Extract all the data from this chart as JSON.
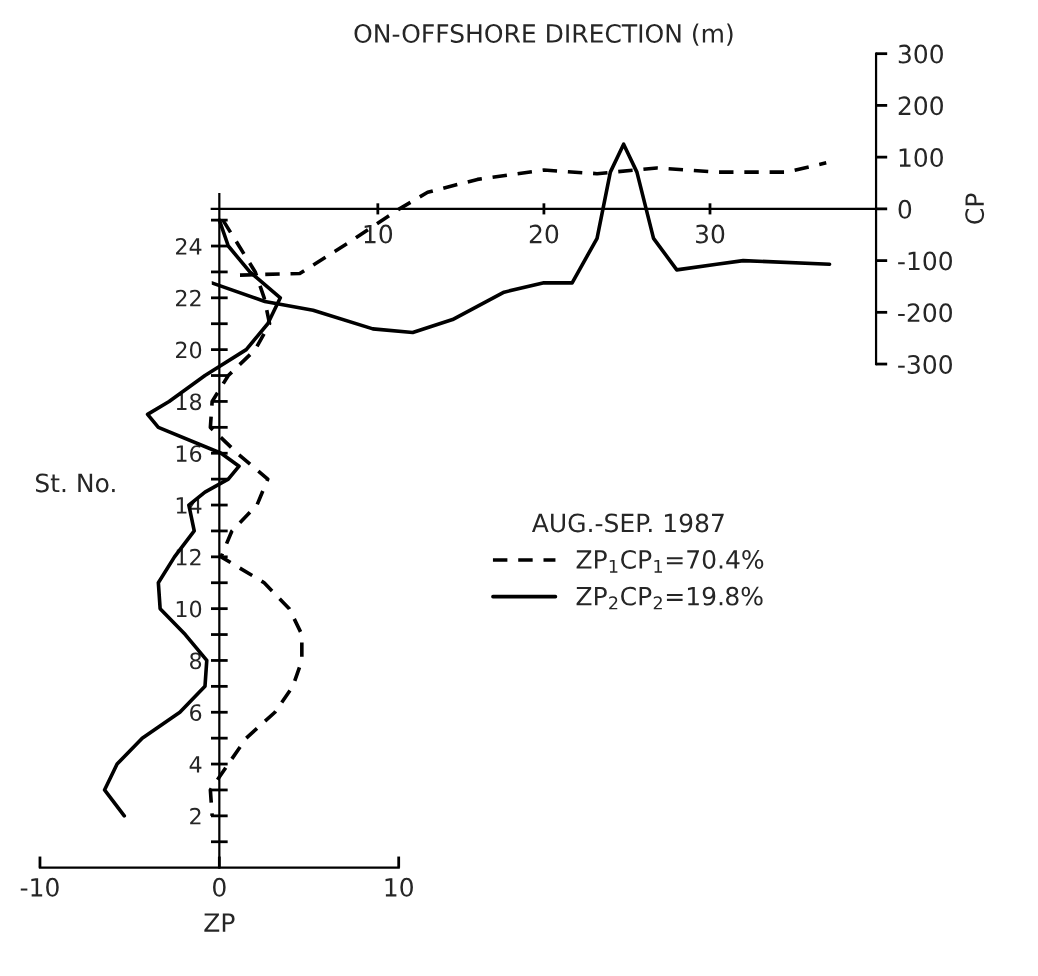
{
  "chart_data": [
    {
      "type": "line",
      "xlabel": "ON-OFFSHORE DIRECTION (m)",
      "ylabel": "CP",
      "xlim": [
        0,
        40
      ],
      "xticks": [
        10,
        20,
        30
      ],
      "ylim": [
        -300,
        300
      ],
      "yticks": [
        -300,
        -200,
        -100,
        0,
        100,
        200,
        300
      ],
      "grid": false,
      "legend": false,
      "series": [
        {
          "color": "#000000",
          "line_style": "dashed",
          "x": [
            1.7,
            5.3,
            8.3,
            11.3,
            13,
            16,
            20,
            23.2,
            26.8,
            30.4,
            34.6,
            37
          ],
          "values": [
            -128,
            -125,
            -64,
            0,
            32,
            57,
            75,
            68,
            79,
            71,
            71,
            89
          ]
        },
        {
          "color": "#000000",
          "line_style": "solid",
          "x": [
            0,
            3.2,
            6.1,
            9.7,
            12.1,
            14.5,
            17.6,
            20,
            21.7,
            23.2,
            24,
            24.8,
            25.6,
            26.6,
            28,
            30.4,
            32,
            37.2
          ],
          "values": [
            -143,
            -179,
            -196,
            -232,
            -239,
            -214,
            -161,
            -143,
            -143,
            -57,
            71,
            125,
            71,
            -57,
            -118,
            -107,
            -100,
            -107
          ]
        }
      ]
    },
    {
      "type": "line",
      "xlabel": "ZP",
      "ylabel": "St. No.",
      "legend_title": "AUG.-SEP. 1987",
      "xlim": [
        -10,
        10
      ],
      "xticks": [
        -10,
        0,
        10
      ],
      "ylim": [
        0,
        26
      ],
      "yticks": [
        {
          "value": 1,
          "label": null
        },
        2,
        {
          "value": 3,
          "label": null
        },
        4,
        {
          "value": 5,
          "label": null
        },
        6,
        {
          "value": 7,
          "label": null
        },
        8,
        {
          "value": 9,
          "label": null
        },
        10,
        {
          "value": 11,
          "label": null
        },
        12,
        {
          "value": 13,
          "label": null
        },
        14,
        {
          "value": 15,
          "label": null
        },
        16,
        {
          "value": 17,
          "label": null
        },
        18,
        {
          "value": 19,
          "label": null
        },
        20,
        {
          "value": 21,
          "label": null
        },
        22,
        {
          "value": 23,
          "label": null
        },
        24,
        {
          "value": 25,
          "label": null
        }
      ],
      "grid": false,
      "legend": "right",
      "series": [
        {
          "name": "ZP$_{1}$CP$_{1}$=70.4%",
          "color": "#000000",
          "line_style": "dashed",
          "x": [
            0.2,
            1.1,
            2,
            2.5,
            2.8,
            2,
            0.5,
            -0.4,
            -0.5,
            1,
            2.7,
            2.1,
            0.7,
            0.1,
            2.5,
            3.9,
            4.6,
            4.6,
            4.1,
            3.1,
            1.5,
            0.5,
            -0.5,
            -0.4
          ],
          "values": [
            25,
            24,
            23,
            22,
            21,
            20,
            19,
            18,
            17,
            16,
            15,
            14,
            13,
            12,
            11,
            10,
            9,
            8,
            7,
            6,
            5,
            4,
            3,
            2
          ]
        },
        {
          "name": "ZP$_{2}$CP$_{2}$=19.8%",
          "color": "#000000",
          "line_style": "solid",
          "x": [
            0,
            0.5,
            1.7,
            3.4,
            2.7,
            1.5,
            -0.8,
            -2.8,
            -4.0,
            -3.4,
            0.1,
            1.1,
            0.5,
            -0.8,
            -1.7,
            -1.4,
            -2.5,
            -3.4,
            -3.3,
            -1.9,
            -0.7,
            -0.8,
            -2.2,
            -4.3,
            -5.7,
            -6.4,
            -5.3
          ],
          "values": [
            25,
            24,
            23,
            22,
            21,
            20,
            19,
            18,
            17.5,
            17,
            16,
            15.5,
            15,
            14.5,
            14,
            13,
            12,
            11,
            10,
            9,
            8,
            7,
            6,
            5,
            4,
            3,
            2
          ]
        }
      ]
    }
  ]
}
